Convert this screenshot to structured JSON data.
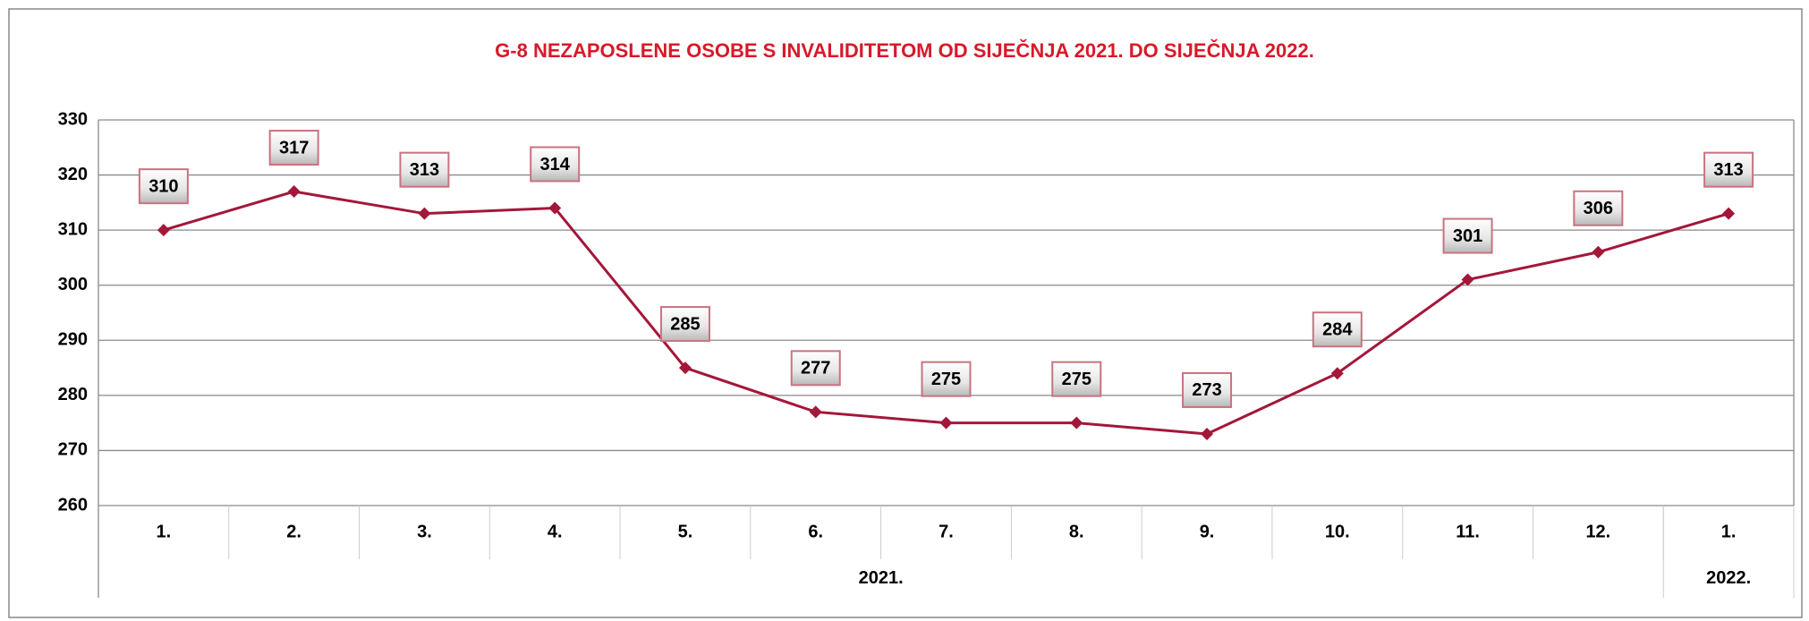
{
  "chart_data": {
    "type": "line",
    "title": "G-8 NEZAPOSLENE OSOBE S INVALIDITETOM OD SIJEČNJA 2021. DO SIJEČNJA 2022.",
    "categories": [
      "1.",
      "2.",
      "3.",
      "4.",
      "5.",
      "6.",
      "7.",
      "8.",
      "9.",
      "10.",
      "11.",
      "12.",
      "1."
    ],
    "x_groups": [
      {
        "label": "2021.",
        "count": 12
      },
      {
        "label": "2022.",
        "count": 1
      }
    ],
    "series": [
      {
        "name": "Nezaposlene osobe s invaliditetom",
        "color": "#a3173a",
        "values": [
          310,
          317,
          313,
          314,
          285,
          277,
          275,
          275,
          273,
          284,
          301,
          306,
          313
        ]
      }
    ],
    "ylim": [
      260,
      330
    ],
    "yticks": [
      260,
      270,
      280,
      290,
      300,
      310,
      320,
      330
    ],
    "grid": true
  }
}
